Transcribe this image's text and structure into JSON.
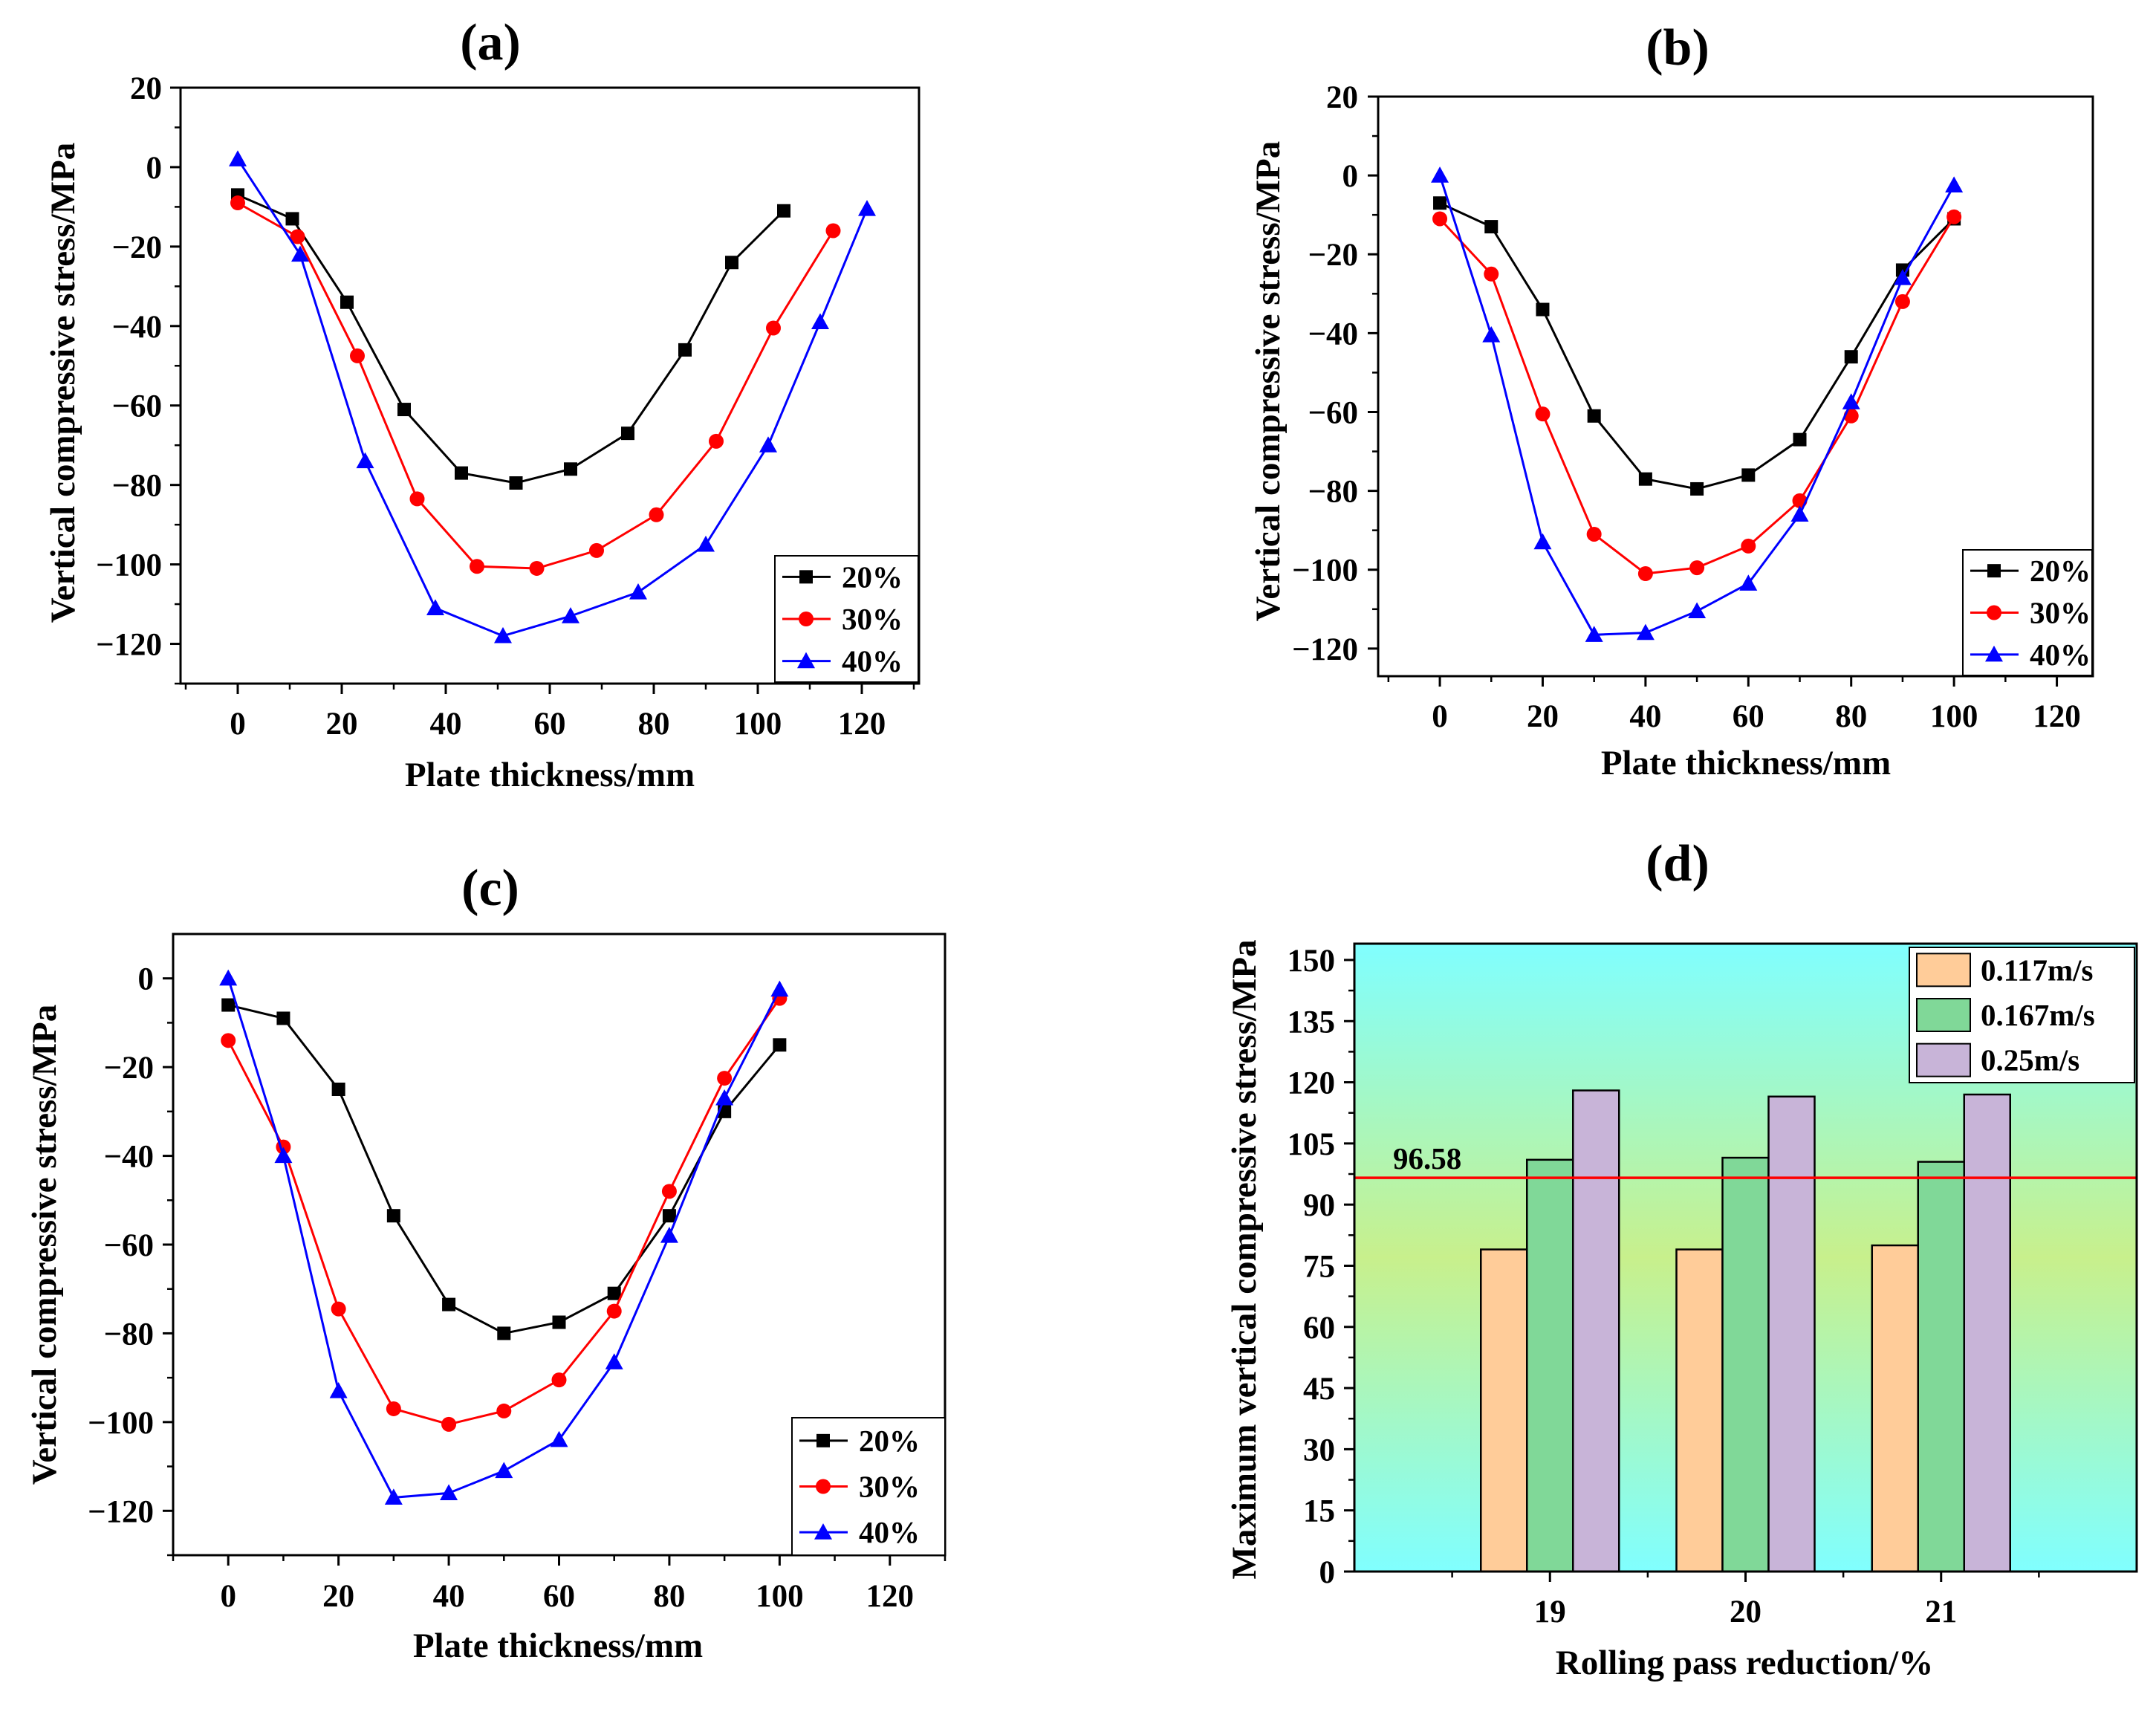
{
  "chart_data": [
    {
      "id": "a",
      "type": "line",
      "panel_label": "(a)",
      "xlabel": "Plate thickness/mm",
      "ylabel": "Vertical compressive stress/MPa",
      "xlim": [
        -11,
        131
      ],
      "ylim": [
        -130,
        20
      ],
      "xticks": [
        0,
        20,
        40,
        60,
        80,
        100,
        120
      ],
      "yticks": [
        20,
        0,
        -20,
        -40,
        -60,
        -80,
        -100,
        -120
      ],
      "legend_position": "bottom-right",
      "series": [
        {
          "name": "20%",
          "color": "#000000",
          "marker": "square",
          "x": [
            0,
            10.5,
            21,
            32,
            43,
            53.5,
            64,
            75,
            86,
            95,
            105
          ],
          "y": [
            -7,
            -13,
            -34,
            -61,
            -77,
            -79.5,
            -76,
            -67,
            -46,
            -24,
            -11
          ]
        },
        {
          "name": "30%",
          "color": "#ff0000",
          "marker": "circle",
          "x": [
            0,
            11.5,
            23,
            34.5,
            46,
            57.5,
            69,
            80.5,
            92,
            103,
            114.5
          ],
          "y": [
            -9,
            -17.5,
            -47.5,
            -83.5,
            -100.5,
            -101,
            -96.5,
            -87.5,
            -69,
            -40.5,
            -16
          ]
        },
        {
          "name": "40%",
          "color": "#0000ff",
          "marker": "triangle",
          "x": [
            0,
            12,
            24.5,
            38,
            51,
            64,
            77,
            90,
            102,
            112,
            121
          ],
          "y": [
            2,
            -22,
            -74,
            -111,
            -118,
            -113,
            -107,
            -95,
            -70,
            -39,
            -10.5
          ]
        }
      ]
    },
    {
      "id": "b",
      "type": "line",
      "panel_label": "(b)",
      "xlabel": "Plate thickness/mm",
      "ylabel": "Vertical compressive stress/MPa",
      "xlim": [
        -12,
        127
      ],
      "ylim": [
        -127,
        20
      ],
      "xticks": [
        0,
        20,
        40,
        60,
        80,
        100,
        120
      ],
      "yticks": [
        20,
        0,
        -20,
        -40,
        -60,
        -80,
        -100,
        -120
      ],
      "legend_position": "bottom-right",
      "series": [
        {
          "name": "20%",
          "color": "#000000",
          "marker": "square",
          "x": [
            0,
            10,
            20,
            30,
            40,
            50,
            60,
            70,
            80,
            90,
            100
          ],
          "y": [
            -7,
            -13,
            -34,
            -61,
            -77,
            -79.5,
            -76,
            -67,
            -46,
            -24,
            -11
          ]
        },
        {
          "name": "30%",
          "color": "#ff0000",
          "marker": "circle",
          "x": [
            0,
            10,
            20,
            30,
            40,
            50,
            60,
            70,
            80,
            90,
            100
          ],
          "y": [
            -11,
            -25,
            -60.5,
            -91,
            -101,
            -99.5,
            -94,
            -82.5,
            -61,
            -32,
            -10.5
          ]
        },
        {
          "name": "40%",
          "color": "#0000ff",
          "marker": "triangle",
          "x": [
            0,
            10,
            20,
            30,
            40,
            50,
            60,
            70,
            80,
            90,
            100
          ],
          "y": [
            0,
            -40.5,
            -93,
            -116.5,
            -116,
            -110.5,
            -103.5,
            -86,
            -57.5,
            -26,
            -2.5
          ]
        }
      ]
    },
    {
      "id": "c",
      "type": "line",
      "panel_label": "(c)",
      "xlabel": "Plate thickness/mm",
      "ylabel": "Vertical compressive stress/MPa",
      "xlim": [
        -10,
        130
      ],
      "ylim": [
        -130,
        10
      ],
      "xticks": [
        0,
        20,
        40,
        60,
        80,
        100,
        120
      ],
      "yticks": [
        0,
        -20,
        -40,
        -60,
        -80,
        -100,
        -120
      ],
      "legend_position": "bottom-right",
      "series": [
        {
          "name": "20%",
          "color": "#000000",
          "marker": "square",
          "x": [
            0,
            10,
            20,
            30,
            40,
            50,
            60,
            70,
            80,
            90,
            100
          ],
          "y": [
            -6,
            -9,
            -25,
            -53.5,
            -73.5,
            -80,
            -77.5,
            -71,
            -53.5,
            -30,
            -15
          ]
        },
        {
          "name": "30%",
          "color": "#ff0000",
          "marker": "circle",
          "x": [
            0,
            10,
            20,
            30,
            40,
            50,
            60,
            70,
            80,
            90,
            100
          ],
          "y": [
            -14,
            -38,
            -74.5,
            -97,
            -100.5,
            -97.5,
            -90.5,
            -75,
            -48,
            -22.5,
            -4.5
          ]
        },
        {
          "name": "40%",
          "color": "#0000ff",
          "marker": "triangle",
          "x": [
            0,
            10,
            20,
            30,
            40,
            50,
            60,
            70,
            80,
            90,
            100
          ],
          "y": [
            0,
            -40,
            -93,
            -117,
            -116,
            -111,
            -104,
            -86.5,
            -58,
            -27,
            -2.5
          ]
        }
      ]
    },
    {
      "id": "d",
      "type": "bar",
      "panel_label": "(d)",
      "xlabel": "Rolling pass reduction/%",
      "ylabel": "Maximum vertical compressive stress/MPa",
      "categories": [
        "19",
        "20",
        "21"
      ],
      "ylim": [
        0,
        154
      ],
      "yticks": [
        0,
        15,
        30,
        45,
        60,
        75,
        90,
        105,
        120,
        135,
        150
      ],
      "legend_position": "top-right",
      "series": [
        {
          "name": "0.117m/s",
          "color": "#ffcc99",
          "values": [
            79,
            79,
            80
          ]
        },
        {
          "name": "0.167m/s",
          "color": "#80d898",
          "values": [
            101,
            101.5,
            100.5
          ]
        },
        {
          "name": "0.25m/s",
          "color": "#c8b4d8",
          "values": [
            118,
            116.5,
            117
          ]
        }
      ],
      "reference_line": {
        "value": 96.58,
        "label": "96.58",
        "color": "#ff0000"
      },
      "background_gradient": [
        "#80ffff",
        "#c8f08c",
        "#80ffff"
      ]
    }
  ]
}
